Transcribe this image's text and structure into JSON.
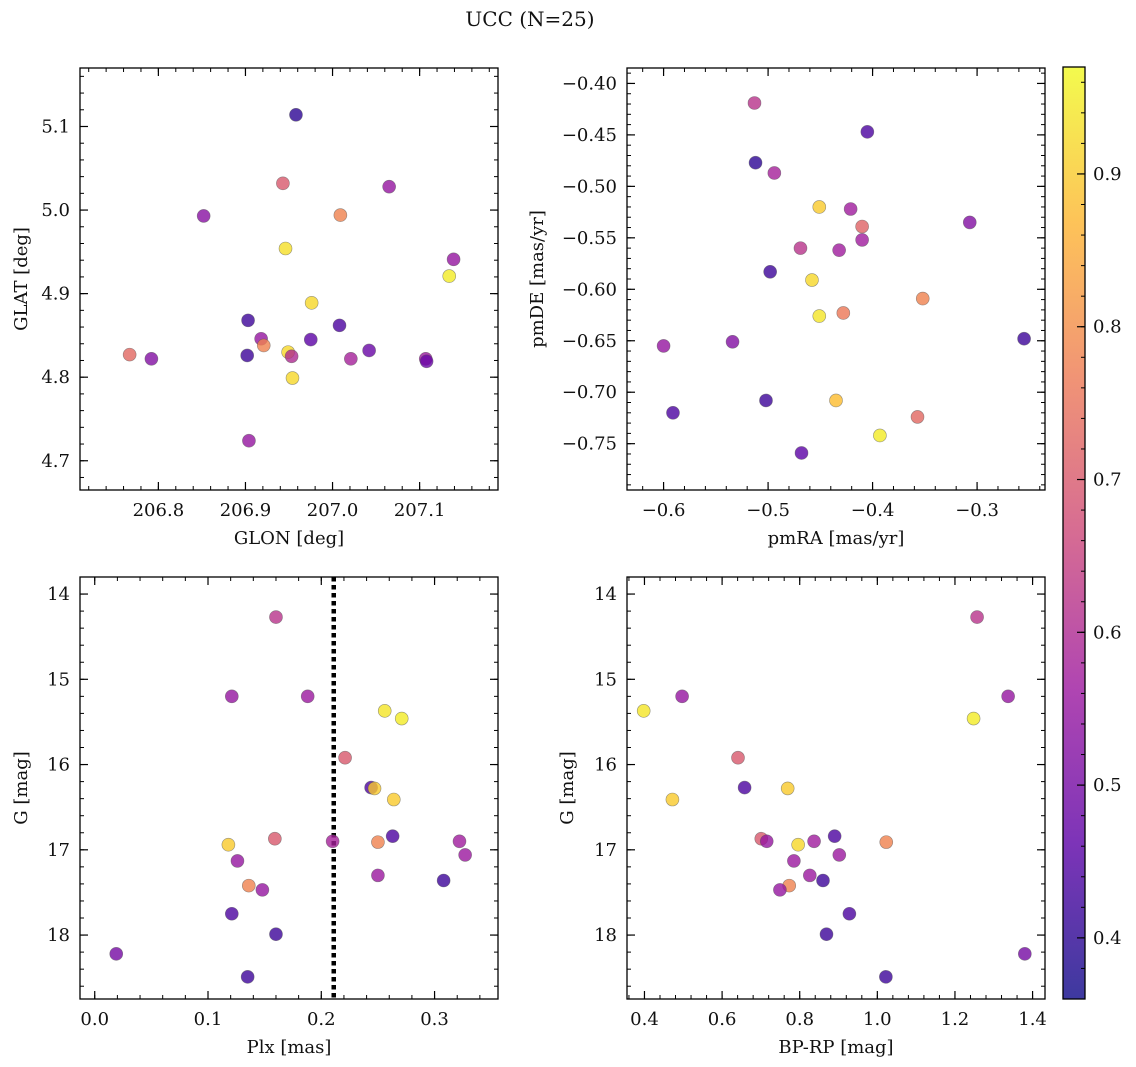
{
  "figure": {
    "title": "UCC (N=25)"
  },
  "colorbar": {
    "range": [
      0.36,
      0.97
    ],
    "ticks": [
      0.4,
      0.5,
      0.6,
      0.7,
      0.8,
      0.9
    ],
    "colormap": [
      "#0d0887",
      "#5c01a6",
      "#9c179e",
      "#cc4778",
      "#ed7953",
      "#fdb42f",
      "#f0f921"
    ],
    "alpha": 0.8
  },
  "chart_data": [
    {
      "type": "scatter",
      "id": "glon_glat",
      "xlabel": "GLON [deg]",
      "ylabel": "GLAT [deg]",
      "xlim": [
        206.71,
        207.19
      ],
      "ylim": [
        4.665,
        5.17
      ],
      "xticks": [
        206.8,
        206.9,
        207.0,
        207.1
      ],
      "yticks": [
        4.7,
        4.8,
        4.9,
        5.0,
        5.1
      ],
      "xtick_labels": [
        "206.8",
        "206.9",
        "207.0",
        "207.1"
      ],
      "ytick_labels": [
        "4.7",
        "4.8",
        "4.9",
        "5.0",
        "5.1"
      ],
      "points": [
        {
          "x": 206.958,
          "y": 5.114,
          "c": 0.4
        },
        {
          "x": 206.943,
          "y": 5.032,
          "c": 0.7
        },
        {
          "x": 207.065,
          "y": 5.028,
          "c": 0.55
        },
        {
          "x": 206.852,
          "y": 4.993,
          "c": 0.53
        },
        {
          "x": 207.009,
          "y": 4.994,
          "c": 0.78
        },
        {
          "x": 206.946,
          "y": 4.954,
          "c": 0.93
        },
        {
          "x": 207.139,
          "y": 4.941,
          "c": 0.55
        },
        {
          "x": 207.134,
          "y": 4.921,
          "c": 0.95
        },
        {
          "x": 206.976,
          "y": 4.889,
          "c": 0.92
        },
        {
          "x": 206.903,
          "y": 4.868,
          "c": 0.42
        },
        {
          "x": 207.008,
          "y": 4.862,
          "c": 0.44
        },
        {
          "x": 206.918,
          "y": 4.846,
          "c": 0.55
        },
        {
          "x": 206.975,
          "y": 4.845,
          "c": 0.46
        },
        {
          "x": 206.921,
          "y": 4.838,
          "c": 0.78
        },
        {
          "x": 207.042,
          "y": 4.832,
          "c": 0.48
        },
        {
          "x": 206.949,
          "y": 4.83,
          "c": 0.92
        },
        {
          "x": 206.767,
          "y": 4.827,
          "c": 0.73
        },
        {
          "x": 206.902,
          "y": 4.826,
          "c": 0.42
        },
        {
          "x": 206.953,
          "y": 4.825,
          "c": 0.6
        },
        {
          "x": 206.792,
          "y": 4.822,
          "c": 0.52
        },
        {
          "x": 207.021,
          "y": 4.822,
          "c": 0.58
        },
        {
          "x": 207.107,
          "y": 4.822,
          "c": 0.56
        },
        {
          "x": 207.108,
          "y": 4.819,
          "c": 0.48
        },
        {
          "x": 206.954,
          "y": 4.799,
          "c": 0.92
        },
        {
          "x": 206.904,
          "y": 4.724,
          "c": 0.55
        }
      ]
    },
    {
      "type": "scatter",
      "id": "pmra_pmde",
      "xlabel": "pmRA [mas/yr]",
      "ylabel": "pmDE [mas/yr]",
      "xlim": [
        -0.635,
        -0.235
      ],
      "ylim": [
        -0.795,
        -0.385
      ],
      "xticks": [
        -0.6,
        -0.5,
        -0.4,
        -0.3
      ],
      "yticks": [
        -0.4,
        -0.45,
        -0.5,
        -0.55,
        -0.6,
        -0.65,
        -0.7,
        -0.75
      ],
      "xtick_labels": [
        "−0.6",
        "−0.5",
        "−0.4",
        "−0.3"
      ],
      "ytick_labels": [
        "−0.40",
        "−0.45",
        "−0.50",
        "−0.55",
        "−0.60",
        "−0.65",
        "−0.70",
        "−0.75"
      ],
      "points": [
        {
          "x": -0.513,
          "y": -0.419,
          "c": 0.62
        },
        {
          "x": -0.405,
          "y": -0.447,
          "c": 0.44
        },
        {
          "x": -0.512,
          "y": -0.477,
          "c": 0.4
        },
        {
          "x": -0.494,
          "y": -0.487,
          "c": 0.58
        },
        {
          "x": -0.451,
          "y": -0.52,
          "c": 0.9
        },
        {
          "x": -0.421,
          "y": -0.522,
          "c": 0.57
        },
        {
          "x": -0.41,
          "y": -0.539,
          "c": 0.72
        },
        {
          "x": -0.307,
          "y": -0.535,
          "c": 0.52
        },
        {
          "x": -0.41,
          "y": -0.552,
          "c": 0.57
        },
        {
          "x": -0.469,
          "y": -0.56,
          "c": 0.62
        },
        {
          "x": -0.432,
          "y": -0.562,
          "c": 0.57
        },
        {
          "x": -0.498,
          "y": -0.583,
          "c": 0.42
        },
        {
          "x": -0.458,
          "y": -0.591,
          "c": 0.92
        },
        {
          "x": -0.352,
          "y": -0.609,
          "c": 0.78
        },
        {
          "x": -0.428,
          "y": -0.623,
          "c": 0.76
        },
        {
          "x": -0.451,
          "y": -0.626,
          "c": 0.94
        },
        {
          "x": -0.534,
          "y": -0.651,
          "c": 0.52
        },
        {
          "x": -0.255,
          "y": -0.648,
          "c": 0.42
        },
        {
          "x": -0.6,
          "y": -0.655,
          "c": 0.55
        },
        {
          "x": -0.502,
          "y": -0.708,
          "c": 0.42
        },
        {
          "x": -0.435,
          "y": -0.708,
          "c": 0.88
        },
        {
          "x": -0.591,
          "y": -0.72,
          "c": 0.44
        },
        {
          "x": -0.357,
          "y": -0.724,
          "c": 0.73
        },
        {
          "x": -0.393,
          "y": -0.742,
          "c": 0.95
        },
        {
          "x": -0.468,
          "y": -0.759,
          "c": 0.46
        }
      ]
    },
    {
      "type": "scatter",
      "id": "plx_g",
      "xlabel": "Plx [mas]",
      "ylabel": "G [mag]",
      "xlim": [
        -0.013,
        0.356
      ],
      "ylim": [
        13.8,
        18.75
      ],
      "y_inverted": true,
      "xticks": [
        0.0,
        0.1,
        0.2,
        0.3
      ],
      "yticks": [
        14,
        15,
        16,
        17,
        18
      ],
      "xtick_labels": [
        "0.0",
        "0.1",
        "0.2",
        "0.3"
      ],
      "ytick_labels": [
        "14",
        "15",
        "16",
        "17",
        "18"
      ],
      "vline": {
        "x": 0.211,
        "style": "dotted"
      },
      "points": [
        {
          "x": 0.16,
          "y": 14.27,
          "c": 0.62
        },
        {
          "x": 0.121,
          "y": 15.2,
          "c": 0.55
        },
        {
          "x": 0.188,
          "y": 15.2,
          "c": 0.56
        },
        {
          "x": 0.256,
          "y": 15.37,
          "c": 0.94
        },
        {
          "x": 0.271,
          "y": 15.46,
          "c": 0.95
        },
        {
          "x": 0.221,
          "y": 15.92,
          "c": 0.7
        },
        {
          "x": 0.244,
          "y": 16.27,
          "c": 0.44
        },
        {
          "x": 0.247,
          "y": 16.28,
          "c": 0.9
        },
        {
          "x": 0.264,
          "y": 16.41,
          "c": 0.9
        },
        {
          "x": 0.263,
          "y": 16.84,
          "c": 0.44
        },
        {
          "x": 0.159,
          "y": 16.87,
          "c": 0.7
        },
        {
          "x": 0.21,
          "y": 16.9,
          "c": 0.58
        },
        {
          "x": 0.25,
          "y": 16.91,
          "c": 0.78
        },
        {
          "x": 0.322,
          "y": 16.9,
          "c": 0.57
        },
        {
          "x": 0.118,
          "y": 16.94,
          "c": 0.9
        },
        {
          "x": 0.327,
          "y": 17.06,
          "c": 0.56
        },
        {
          "x": 0.126,
          "y": 17.13,
          "c": 0.55
        },
        {
          "x": 0.25,
          "y": 17.3,
          "c": 0.56
        },
        {
          "x": 0.308,
          "y": 17.36,
          "c": 0.42
        },
        {
          "x": 0.136,
          "y": 17.42,
          "c": 0.78
        },
        {
          "x": 0.148,
          "y": 17.47,
          "c": 0.55
        },
        {
          "x": 0.121,
          "y": 17.75,
          "c": 0.44
        },
        {
          "x": 0.16,
          "y": 17.99,
          "c": 0.42
        },
        {
          "x": 0.019,
          "y": 18.22,
          "c": 0.5
        },
        {
          "x": 0.135,
          "y": 18.49,
          "c": 0.42
        }
      ]
    },
    {
      "type": "scatter",
      "id": "bprp_g",
      "xlabel": "BP-RP [mag]",
      "ylabel": "G [mag]",
      "xlim": [
        0.355,
        1.432
      ],
      "ylim": [
        13.8,
        18.75
      ],
      "y_inverted": true,
      "xticks": [
        0.4,
        0.6,
        0.8,
        1.0,
        1.2,
        1.4
      ],
      "yticks": [
        14,
        15,
        16,
        17,
        18
      ],
      "xtick_labels": [
        "0.4",
        "0.6",
        "0.8",
        "1.0",
        "1.2",
        "1.4"
      ],
      "ytick_labels": [
        "14",
        "15",
        "16",
        "17",
        "18"
      ],
      "points": [
        {
          "x": 1.257,
          "y": 14.27,
          "c": 0.62
        },
        {
          "x": 0.497,
          "y": 15.2,
          "c": 0.55
        },
        {
          "x": 1.337,
          "y": 15.2,
          "c": 0.55
        },
        {
          "x": 0.398,
          "y": 15.37,
          "c": 0.94
        },
        {
          "x": 1.248,
          "y": 15.46,
          "c": 0.95
        },
        {
          "x": 0.641,
          "y": 15.92,
          "c": 0.7
        },
        {
          "x": 0.658,
          "y": 16.27,
          "c": 0.44
        },
        {
          "x": 0.769,
          "y": 16.28,
          "c": 0.9
        },
        {
          "x": 0.472,
          "y": 16.41,
          "c": 0.9
        },
        {
          "x": 0.89,
          "y": 16.84,
          "c": 0.44
        },
        {
          "x": 0.701,
          "y": 16.87,
          "c": 0.7
        },
        {
          "x": 0.837,
          "y": 16.9,
          "c": 0.57
        },
        {
          "x": 1.023,
          "y": 16.91,
          "c": 0.78
        },
        {
          "x": 0.715,
          "y": 16.9,
          "c": 0.55
        },
        {
          "x": 0.796,
          "y": 16.94,
          "c": 0.92
        },
        {
          "x": 0.902,
          "y": 17.06,
          "c": 0.56
        },
        {
          "x": 0.785,
          "y": 17.13,
          "c": 0.56
        },
        {
          "x": 0.826,
          "y": 17.3,
          "c": 0.56
        },
        {
          "x": 0.86,
          "y": 17.36,
          "c": 0.42
        },
        {
          "x": 0.773,
          "y": 17.42,
          "c": 0.78
        },
        {
          "x": 0.749,
          "y": 17.47,
          "c": 0.55
        },
        {
          "x": 0.928,
          "y": 17.75,
          "c": 0.44
        },
        {
          "x": 0.869,
          "y": 17.99,
          "c": 0.42
        },
        {
          "x": 1.38,
          "y": 18.22,
          "c": 0.5
        },
        {
          "x": 1.022,
          "y": 18.49,
          "c": 0.42
        }
      ]
    }
  ]
}
